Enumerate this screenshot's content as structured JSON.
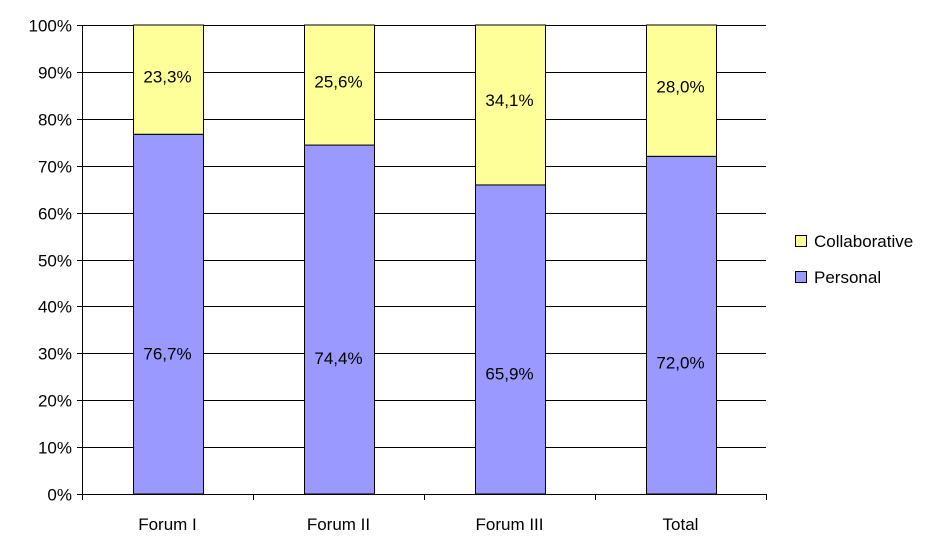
{
  "chart_data": {
    "type": "bar",
    "stacked": true,
    "percent": true,
    "categories": [
      "Forum I",
      "Forum II",
      "Forum III",
      "Total"
    ],
    "series": [
      {
        "name": "Personal",
        "color": "#9999ff",
        "values": [
          76.7,
          74.4,
          65.9,
          72.0
        ],
        "labels": [
          "76,7%",
          "74,4%",
          "65,9%",
          "72,0%"
        ]
      },
      {
        "name": "Collaborative",
        "color": "#ffff99",
        "values": [
          23.3,
          25.6,
          34.1,
          28.0
        ],
        "labels": [
          "23,3%",
          "25,6%",
          "34,1%",
          "28,0%"
        ]
      }
    ],
    "ylim": [
      0,
      100
    ],
    "yticks": [
      0,
      10,
      20,
      30,
      40,
      50,
      60,
      70,
      80,
      90,
      100
    ],
    "ytick_labels": [
      "0%",
      "10%",
      "20%",
      "30%",
      "40%",
      "50%",
      "60%",
      "70%",
      "80%",
      "90%",
      "100%"
    ],
    "title": "",
    "xlabel": "",
    "ylabel": "",
    "grid": true,
    "legend": {
      "position": "right",
      "entries": [
        {
          "label": "Collaborative",
          "color": "#ffff99"
        },
        {
          "label": "Personal",
          "color": "#9999ff"
        }
      ]
    }
  }
}
